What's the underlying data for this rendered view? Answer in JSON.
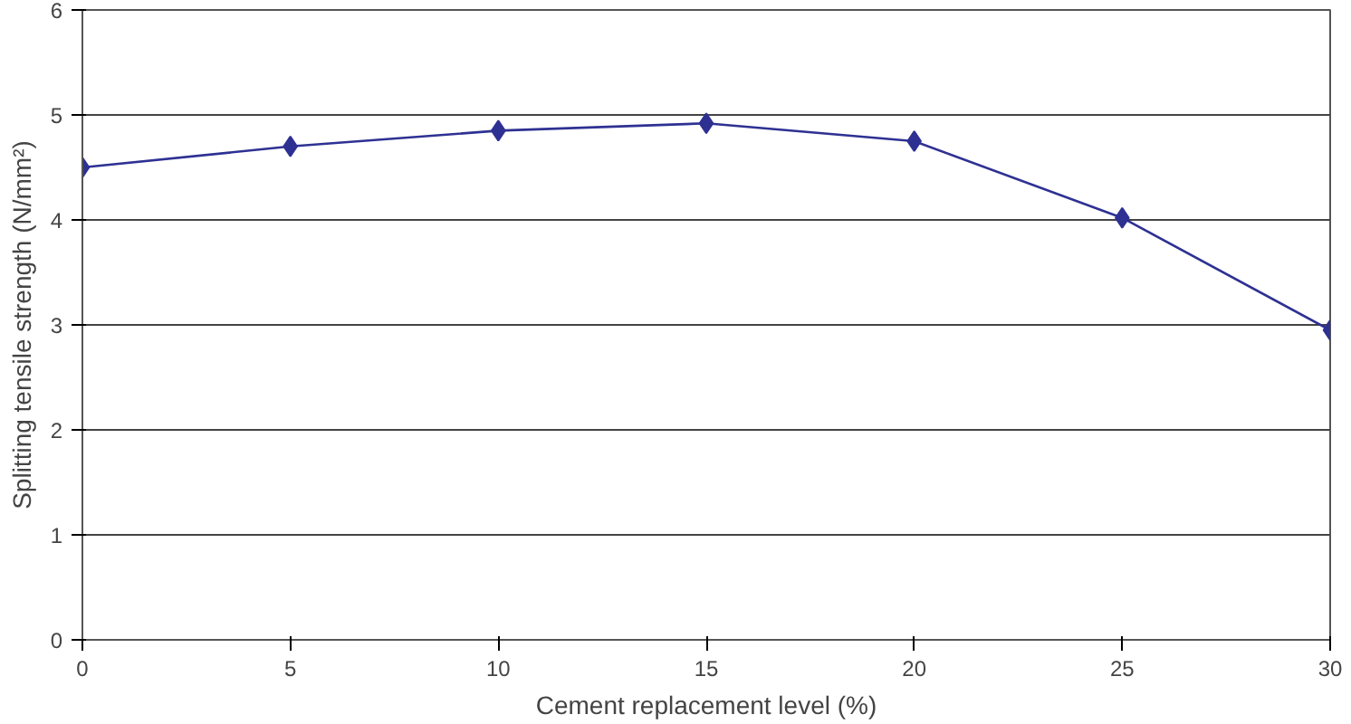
{
  "chart_data": {
    "type": "line",
    "xlabel": "Cement replacement level (%)",
    "ylabel": "Splitting tensile strength (N/mm²)",
    "x": [
      0,
      5,
      10,
      15,
      20,
      25,
      30
    ],
    "series": [
      {
        "color": "#2e3192",
        "values": [
          4.5,
          4.7,
          4.85,
          4.92,
          4.75,
          4.02,
          2.95
        ]
      }
    ],
    "xlim": [
      0,
      30
    ],
    "xticks": [
      0,
      5,
      10,
      15,
      20,
      25,
      30
    ],
    "ylim": [
      0,
      6
    ],
    "yticks": [
      0,
      1,
      2,
      3,
      4,
      5,
      6
    ],
    "grid": "y",
    "marker": "diamond",
    "line_style": "solid"
  }
}
